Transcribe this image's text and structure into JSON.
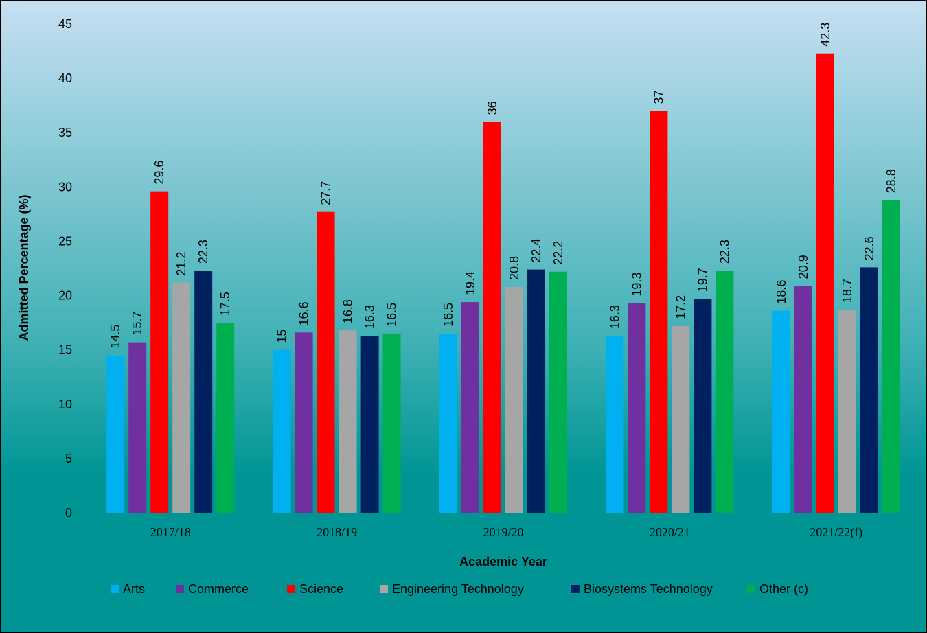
{
  "chart_data": {
    "type": "bar",
    "title": "",
    "xlabel": "Academic Year",
    "ylabel": "Admitted Percentage (%)",
    "ylim": [
      0,
      45
    ],
    "yticks": [
      0,
      5,
      10,
      15,
      20,
      25,
      30,
      35,
      40,
      45
    ],
    "grid": false,
    "legend_position": "bottom",
    "categories": [
      "2017/18",
      "2018/19",
      "2019/20",
      "2020/21",
      "2021/22(f)"
    ],
    "series": [
      {
        "name": "Arts",
        "color": "#00b0f0",
        "values": [
          14.5,
          15,
          16.5,
          16.3,
          18.6
        ]
      },
      {
        "name": "Commerce",
        "color": "#7030a0",
        "values": [
          15.7,
          16.6,
          19.4,
          19.3,
          20.9
        ]
      },
      {
        "name": "Science",
        "color": "#ff0000",
        "values": [
          29.6,
          27.7,
          36,
          37,
          42.3
        ]
      },
      {
        "name": "Engineering Technology",
        "color": "#a6a6a6",
        "values": [
          21.2,
          16.8,
          20.8,
          17.2,
          18.7
        ]
      },
      {
        "name": "Biosystems Technology",
        "color": "#002060",
        "values": [
          22.3,
          16.3,
          22.4,
          19.7,
          22.6
        ]
      },
      {
        "name": "Other (c)",
        "color": "#00b050",
        "values": [
          17.5,
          16.5,
          22.2,
          22.3,
          28.8
        ]
      }
    ],
    "background": {
      "top": "#c6dff2",
      "bottom": "#009594"
    }
  }
}
